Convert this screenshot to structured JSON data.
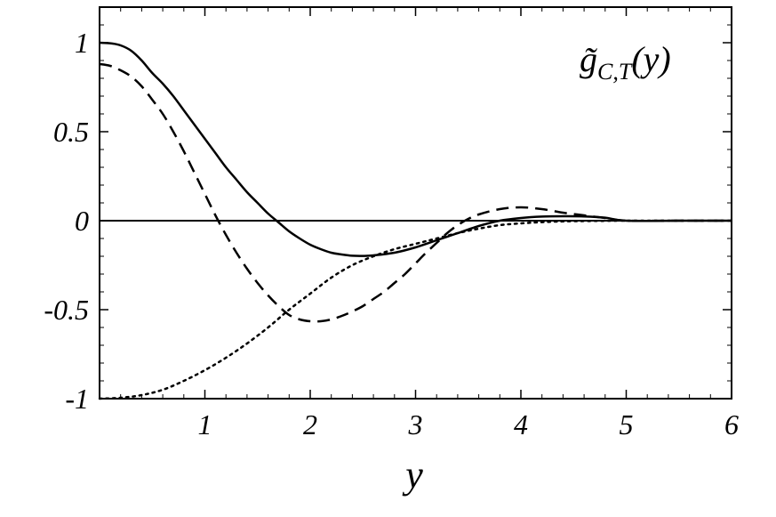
{
  "chart_data": {
    "type": "line",
    "title": "g̃C,T(y)",
    "title_parts": {
      "tilde_g": "g̃",
      "subscript": "C,T",
      "argument": "(y)"
    },
    "xlabel": "y",
    "ylabel": "",
    "xlim": [
      0,
      6
    ],
    "ylim": [
      -1,
      1.2
    ],
    "x_ticks": [
      1,
      2,
      3,
      4,
      5,
      6
    ],
    "x_tick_labels": [
      "1",
      "2",
      "3",
      "4",
      "5",
      "6"
    ],
    "y_ticks": [
      1,
      0.5,
      0,
      -0.5,
      -1
    ],
    "y_tick_labels": [
      "1",
      "0.5",
      "0",
      "-0.5",
      "-1"
    ],
    "grid": false,
    "legend": "none",
    "zero_line": true,
    "series": [
      {
        "style": "solid",
        "x": [
          0,
          0.1,
          0.2,
          0.3,
          0.4,
          0.5,
          0.6,
          0.7,
          0.8,
          0.9,
          1.0,
          1.1,
          1.2,
          1.3,
          1.4,
          1.5,
          1.6,
          1.7,
          1.8,
          1.9,
          2.0,
          2.1,
          2.2,
          2.3,
          2.4,
          2.5,
          2.6,
          2.8,
          3.0,
          3.2,
          3.4,
          3.6,
          3.8,
          4.0,
          4.2,
          4.4,
          4.6,
          4.8,
          5.0,
          5.5,
          6.0
        ],
        "y": [
          1.0,
          0.997,
          0.985,
          0.955,
          0.9,
          0.83,
          0.77,
          0.7,
          0.62,
          0.54,
          0.46,
          0.38,
          0.3,
          0.23,
          0.16,
          0.1,
          0.04,
          -0.01,
          -0.06,
          -0.1,
          -0.135,
          -0.16,
          -0.18,
          -0.19,
          -0.197,
          -0.198,
          -0.195,
          -0.18,
          -0.15,
          -0.11,
          -0.07,
          -0.03,
          0.0,
          0.015,
          0.023,
          0.025,
          0.024,
          0.017,
          0.0,
          0.0,
          0.0
        ]
      },
      {
        "style": "dashed",
        "x": [
          0,
          0.1,
          0.2,
          0.3,
          0.4,
          0.5,
          0.6,
          0.7,
          0.8,
          0.9,
          1.0,
          1.1,
          1.2,
          1.3,
          1.4,
          1.5,
          1.6,
          1.7,
          1.8,
          1.9,
          2.0,
          2.1,
          2.2,
          2.3,
          2.4,
          2.5,
          2.6,
          2.7,
          2.8,
          2.9,
          3.0,
          3.1,
          3.2,
          3.3,
          3.4,
          3.5,
          3.6,
          3.8,
          4.0,
          4.2,
          4.4,
          4.6,
          4.8,
          5.0,
          5.5,
          6.0
        ],
        "y": [
          0.88,
          0.87,
          0.845,
          0.81,
          0.755,
          0.68,
          0.6,
          0.5,
          0.39,
          0.27,
          0.15,
          0.03,
          -0.08,
          -0.18,
          -0.27,
          -0.35,
          -0.42,
          -0.48,
          -0.53,
          -0.555,
          -0.565,
          -0.565,
          -0.555,
          -0.535,
          -0.51,
          -0.48,
          -0.44,
          -0.4,
          -0.35,
          -0.3,
          -0.24,
          -0.18,
          -0.125,
          -0.07,
          -0.025,
          0.01,
          0.035,
          0.065,
          0.075,
          0.065,
          0.045,
          0.03,
          0.015,
          0.0,
          0.0,
          0.0
        ]
      },
      {
        "style": "dotted",
        "x": [
          0,
          0.2,
          0.4,
          0.6,
          0.8,
          1.0,
          1.2,
          1.4,
          1.6,
          1.8,
          2.0,
          2.2,
          2.4,
          2.6,
          2.8,
          3.0,
          3.2,
          3.4,
          3.6,
          3.8,
          4.0,
          4.2,
          4.4,
          4.6,
          4.8,
          5.0,
          5.5,
          6.0
        ],
        "y": [
          -1.0,
          -0.995,
          -0.98,
          -0.95,
          -0.9,
          -0.84,
          -0.77,
          -0.69,
          -0.6,
          -0.5,
          -0.41,
          -0.32,
          -0.25,
          -0.2,
          -0.16,
          -0.13,
          -0.1,
          -0.07,
          -0.045,
          -0.025,
          -0.015,
          -0.008,
          -0.004,
          -0.002,
          -0.001,
          0.0,
          0.0,
          0.0
        ]
      }
    ]
  }
}
